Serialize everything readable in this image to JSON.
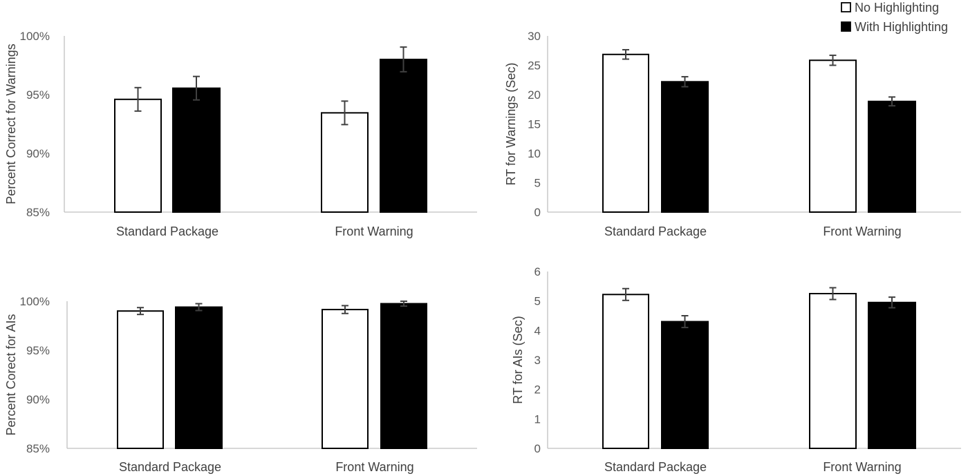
{
  "chart_data": [
    {
      "type": "bar",
      "ylabel": "Percent Correct for Warnings",
      "categories": [
        "Standard Package",
        "Front Warning"
      ],
      "ylim": [
        85,
        100
      ],
      "yticks": [
        "85%",
        "90%",
        "95%",
        "100%"
      ],
      "ytick_values": [
        85,
        90,
        95,
        100
      ],
      "series": [
        {
          "name": "No Highlighting",
          "values": [
            94.6,
            93.45
          ],
          "errors": [
            1.0,
            1.0
          ]
        },
        {
          "name": "With Highlighting",
          "values": [
            95.55,
            98.0
          ],
          "errors": [
            1.0,
            1.05
          ]
        }
      ]
    },
    {
      "type": "bar",
      "ylabel": "RT for Warnings (Sec)",
      "categories": [
        "Standard Package",
        "Front Warning"
      ],
      "ylim": [
        0,
        30
      ],
      "yticks": [
        "0",
        "5",
        "10",
        "15",
        "20",
        "25",
        "30"
      ],
      "ytick_values": [
        0,
        5,
        10,
        15,
        20,
        25,
        30
      ],
      "series": [
        {
          "name": "No Highlighting",
          "values": [
            26.85,
            25.85
          ],
          "errors": [
            0.8,
            0.85
          ]
        },
        {
          "name": "With Highlighting",
          "values": [
            22.2,
            18.85
          ],
          "errors": [
            0.85,
            0.75
          ]
        }
      ]
    },
    {
      "type": "bar",
      "ylabel": "Percent Corect for AIs",
      "categories": [
        "Standard Package",
        "Front Warning"
      ],
      "ylim": [
        85,
        100
      ],
      "yticks": [
        "85%",
        "90%",
        "95%",
        "100%"
      ],
      "ytick_values": [
        85,
        90,
        95,
        100
      ],
      "series": [
        {
          "name": "No Highlighting",
          "values": [
            99.0,
            99.15
          ],
          "errors": [
            0.35,
            0.4
          ]
        },
        {
          "name": "With Highlighting",
          "values": [
            99.4,
            99.75
          ],
          "errors": [
            0.35,
            0.25
          ]
        }
      ]
    },
    {
      "type": "bar",
      "ylabel": "RT for AIs (Sec)",
      "categories": [
        "Standard Package",
        "Front Warning"
      ],
      "ylim": [
        0,
        6
      ],
      "yticks": [
        "0",
        "1",
        "2",
        "3",
        "4",
        "5",
        "6"
      ],
      "ytick_values": [
        0,
        1,
        2,
        3,
        4,
        5,
        6
      ],
      "series": [
        {
          "name": "No Highlighting",
          "values": [
            5.22,
            5.25
          ],
          "errors": [
            0.2,
            0.2
          ]
        },
        {
          "name": "With Highlighting",
          "values": [
            4.3,
            4.95
          ],
          "errors": [
            0.2,
            0.18
          ]
        }
      ]
    }
  ],
  "legend": {
    "items": [
      {
        "label": "No Highlighting",
        "color": "#ffffff"
      },
      {
        "label": "With Highlighting",
        "color": "#000000"
      }
    ]
  },
  "colors": {
    "no_highlighting": "#ffffff",
    "with_highlighting": "#000000",
    "axis": "#bfbfbf",
    "error_bar": "#404040"
  }
}
